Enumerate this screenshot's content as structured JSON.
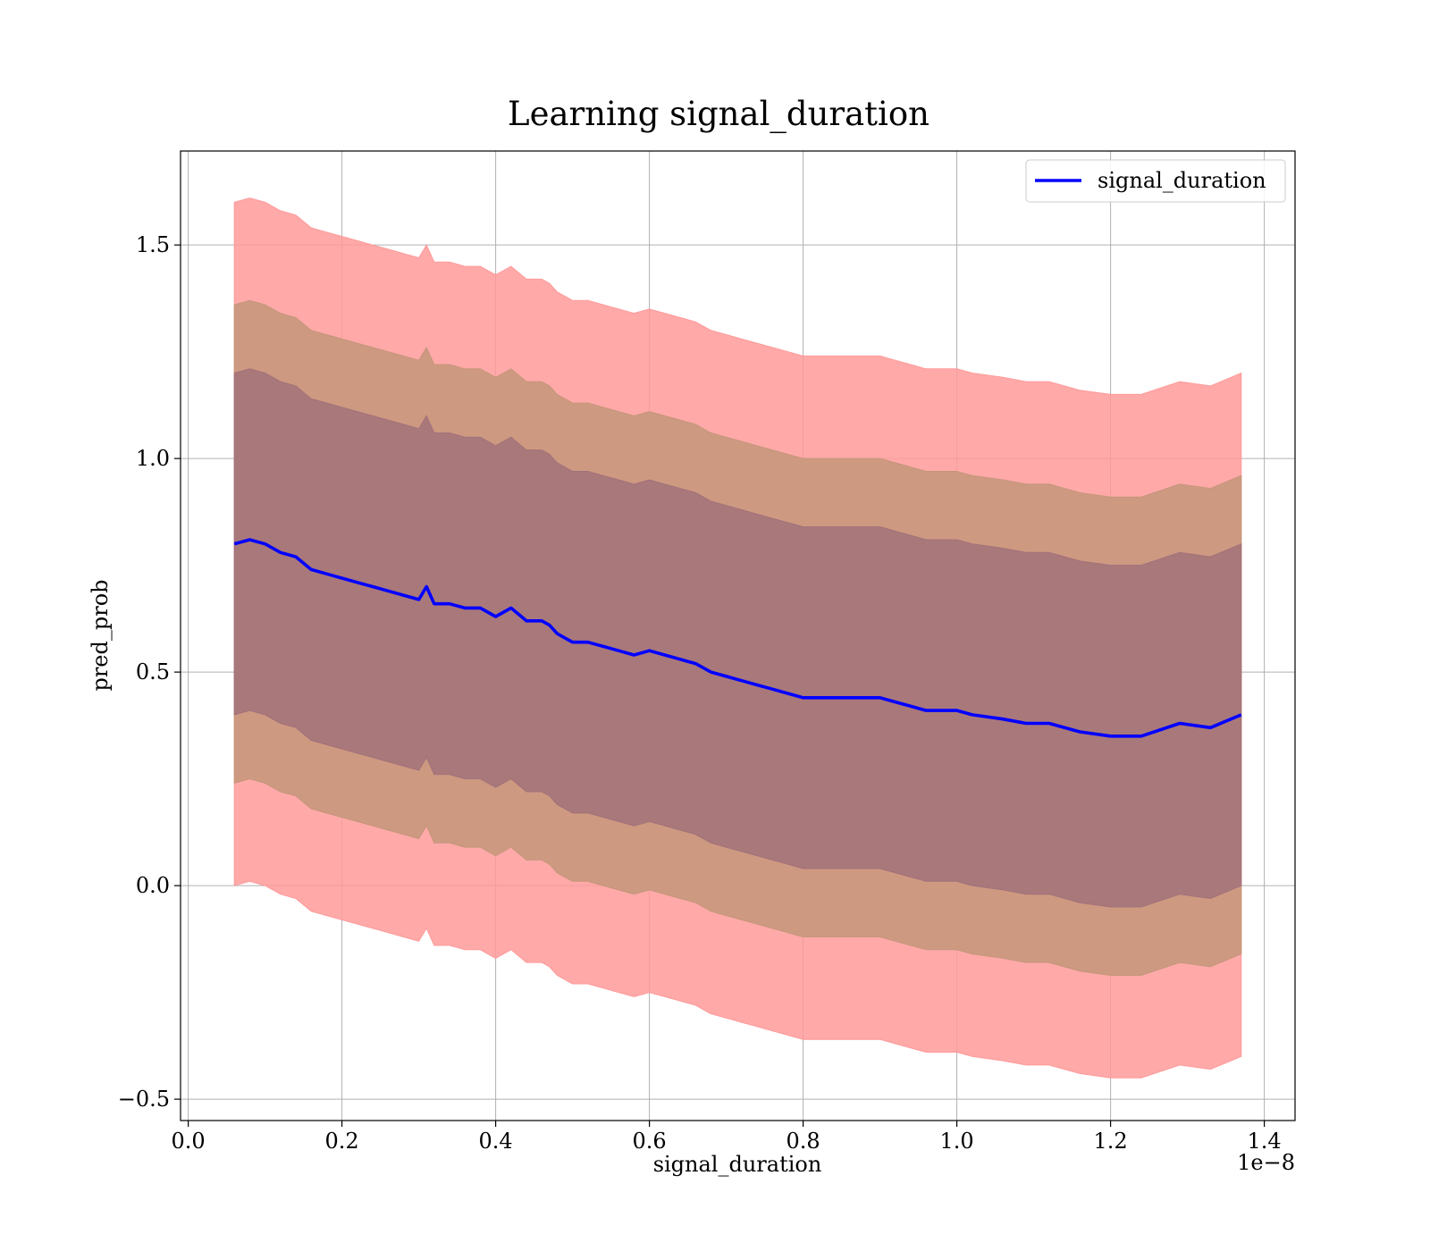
{
  "chart_data": {
    "type": "area",
    "title": "Learning signal_duration",
    "xlabel": "signal_duration",
    "ylabel": "pred_prob",
    "x_offset_label": "1e−8",
    "xlim": [
      -0.01,
      1.44
    ],
    "ylim": [
      -0.55,
      1.72
    ],
    "x_ticks": [
      0.0,
      0.2,
      0.4,
      0.6,
      0.8,
      1.0,
      1.2,
      1.4
    ],
    "x_tick_labels": [
      "0.0",
      "0.2",
      "0.4",
      "0.6",
      "0.8",
      "1.0",
      "1.2",
      "1.4"
    ],
    "y_ticks": [
      -0.5,
      0.0,
      0.5,
      1.0,
      1.5
    ],
    "y_tick_labels": [
      "−0.5",
      "0.0",
      "0.5",
      "1.0",
      "1.5"
    ],
    "grid": true,
    "legend_position": "top-right",
    "colors": {
      "line": "#0000ff",
      "band_outer": "#ff9a9a",
      "band_middle": "#c5967a",
      "band_inner": "#a2727a",
      "grid": "#b0b0b0"
    },
    "x": [
      0.06,
      0.08,
      0.1,
      0.12,
      0.14,
      0.16,
      0.18,
      0.2,
      0.22,
      0.24,
      0.26,
      0.28,
      0.3,
      0.31,
      0.32,
      0.34,
      0.36,
      0.38,
      0.4,
      0.42,
      0.44,
      0.46,
      0.47,
      0.48,
      0.5,
      0.52,
      0.54,
      0.56,
      0.58,
      0.6,
      0.62,
      0.64,
      0.66,
      0.68,
      0.7,
      0.72,
      0.74,
      0.76,
      0.78,
      0.8,
      0.84,
      0.87,
      0.9,
      0.92,
      0.96,
      1.0,
      1.02,
      1.06,
      1.09,
      1.12,
      1.16,
      1.2,
      1.24,
      1.29,
      1.33,
      1.37
    ],
    "series": [
      {
        "name": "signal_duration",
        "values": [
          0.8,
          0.81,
          0.8,
          0.78,
          0.77,
          0.74,
          0.73,
          0.72,
          0.71,
          0.7,
          0.69,
          0.68,
          0.67,
          0.7,
          0.66,
          0.66,
          0.65,
          0.65,
          0.63,
          0.65,
          0.62,
          0.62,
          0.61,
          0.59,
          0.57,
          0.57,
          0.56,
          0.55,
          0.54,
          0.55,
          0.54,
          0.53,
          0.52,
          0.5,
          0.49,
          0.48,
          0.47,
          0.46,
          0.45,
          0.44,
          0.44,
          0.44,
          0.44,
          0.43,
          0.41,
          0.41,
          0.4,
          0.39,
          0.38,
          0.38,
          0.36,
          0.35,
          0.35,
          0.38,
          0.37,
          0.4
        ]
      }
    ],
    "band_half_widths": [
      0.8,
      0.56,
      0.4
    ]
  }
}
